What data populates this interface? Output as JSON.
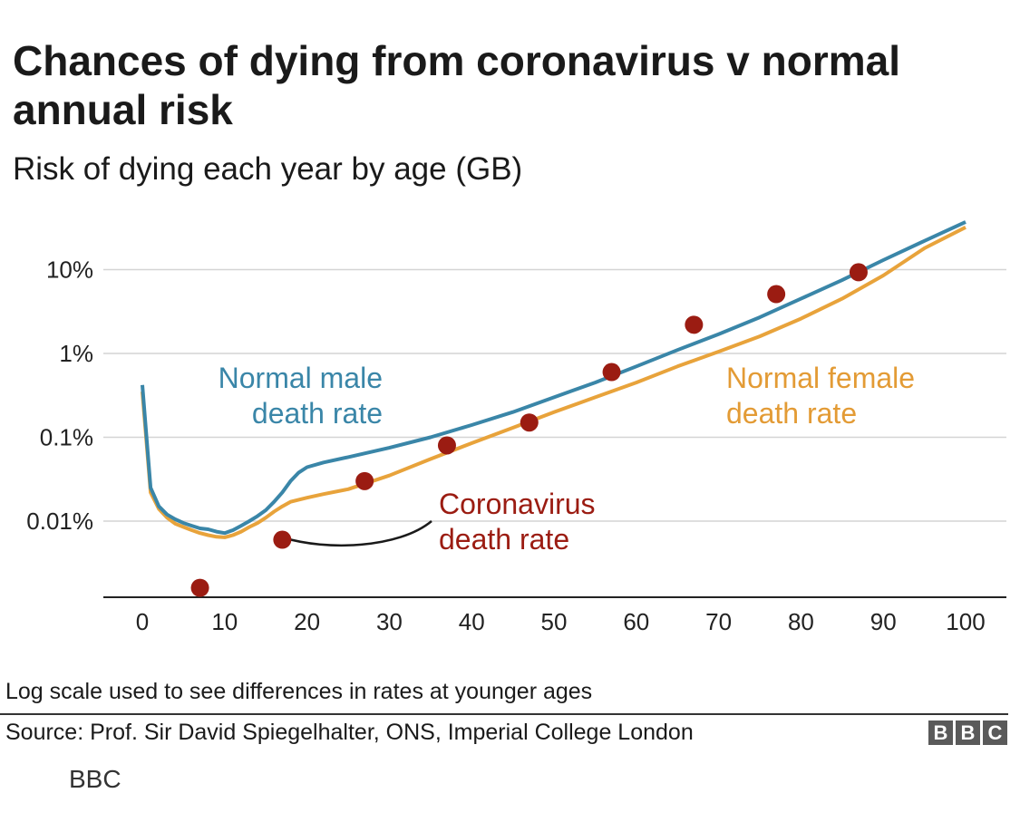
{
  "chart_data": {
    "type": "line",
    "title": "Chances of dying from coronavirus v normal annual risk",
    "subtitle": "Risk of dying each year by age (GB)",
    "xlabel": "",
    "ylabel": "",
    "yscale": "log",
    "xlim": [
      0,
      100
    ],
    "ylim_percent": [
      0.0009,
      40
    ],
    "x_ticks": [
      "0",
      "10",
      "20",
      "30",
      "40",
      "50",
      "60",
      "70",
      "80",
      "90",
      "100"
    ],
    "y_ticks": [
      {
        "value": 10,
        "label": "10%"
      },
      {
        "value": 1,
        "label": "1%"
      },
      {
        "value": 0.1,
        "label": "0.1%"
      },
      {
        "value": 0.01,
        "label": "0.01%"
      }
    ],
    "series": [
      {
        "name": "Normal male death rate",
        "color": "#3a86a8",
        "x": [
          0,
          1,
          2,
          3,
          4,
          5,
          6,
          7,
          8,
          9,
          10,
          11,
          12,
          13,
          14,
          15,
          16,
          17,
          18,
          19,
          20,
          22,
          25,
          30,
          35,
          40,
          45,
          50,
          55,
          60,
          65,
          70,
          75,
          80,
          85,
          90,
          95,
          100
        ],
        "values": [
          0.42,
          0.025,
          0.015,
          0.012,
          0.0105,
          0.0095,
          0.0088,
          0.0082,
          0.008,
          0.0075,
          0.0072,
          0.0078,
          0.0088,
          0.01,
          0.0115,
          0.0135,
          0.017,
          0.022,
          0.03,
          0.038,
          0.044,
          0.05,
          0.058,
          0.075,
          0.1,
          0.14,
          0.2,
          0.3,
          0.45,
          0.7,
          1.1,
          1.7,
          2.7,
          4.5,
          7.5,
          13,
          22,
          37
        ]
      },
      {
        "name": "Normal female death rate",
        "color": "#e8a33b",
        "x": [
          0,
          1,
          2,
          3,
          4,
          5,
          6,
          7,
          8,
          9,
          10,
          11,
          12,
          13,
          14,
          15,
          16,
          17,
          18,
          19,
          20,
          22,
          25,
          30,
          35,
          40,
          45,
          50,
          55,
          60,
          65,
          70,
          75,
          80,
          85,
          90,
          95,
          100
        ],
        "values": [
          0.35,
          0.022,
          0.014,
          0.011,
          0.0093,
          0.0085,
          0.0078,
          0.0072,
          0.0068,
          0.0065,
          0.0064,
          0.0068,
          0.0075,
          0.0085,
          0.0095,
          0.011,
          0.013,
          0.015,
          0.017,
          0.018,
          0.019,
          0.021,
          0.024,
          0.035,
          0.055,
          0.085,
          0.13,
          0.2,
          0.3,
          0.45,
          0.7,
          1.05,
          1.6,
          2.6,
          4.5,
          8.5,
          18,
          32
        ]
      },
      {
        "name": "Coronavirus death rate",
        "color": "#9b1c12",
        "style": "points",
        "x": [
          7,
          17,
          27,
          37,
          47,
          57,
          67,
          77,
          87
        ],
        "values": [
          0.0016,
          0.006,
          0.03,
          0.08,
          0.15,
          0.6,
          2.2,
          5.1,
          9.3
        ]
      }
    ],
    "annotations": {
      "male": [
        "Normal male",
        "death rate"
      ],
      "female": [
        "Normal female",
        "death rate"
      ],
      "corona": [
        "Coronavirus",
        "death rate"
      ]
    }
  },
  "footer": {
    "note": "Log scale used to see differences in rates at younger ages",
    "source": "Source: Prof. Sir David Spiegelhalter, ONS, Imperial College London",
    "logo": [
      "B",
      "B",
      "C"
    ],
    "credit": "BBC"
  }
}
